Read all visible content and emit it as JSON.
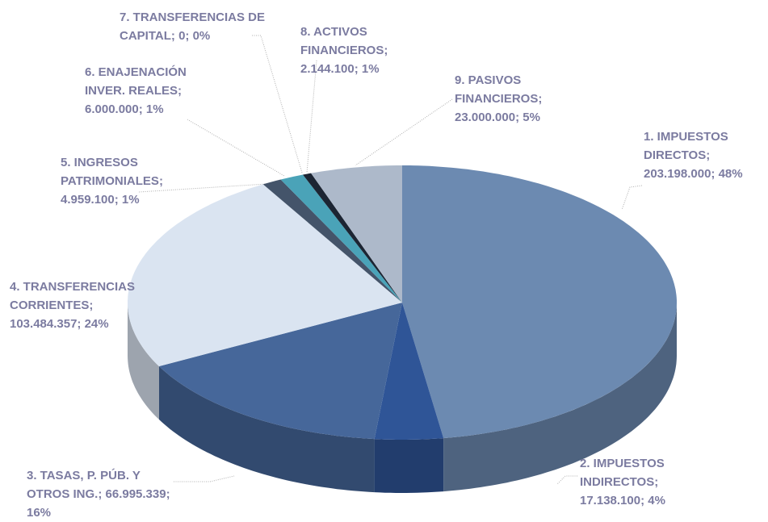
{
  "chart_data": {
    "type": "pie3d",
    "categories": [
      "1. IMPUESTOS DIRECTOS;",
      "2. IMPUESTOS INDIRECTOS;",
      "3. TASAS, P. PÚB. Y OTROS ING.;",
      "4. TRANSFERENCIAS CORRIENTES;",
      "5. INGRESOS PATRIMONIALES;",
      "6. ENAJENACIÓN INVER. REALES;",
      "7. TRANSFERENCIAS DE CAPITAL;",
      "8. ACTIVOS FINANCIEROS;",
      "9. PASIVOS FINANCIEROS;"
    ],
    "values": [
      203198000,
      17138100,
      66995339,
      103484357,
      4959100,
      6000000,
      0,
      2144100,
      23000000
    ],
    "value_labels": [
      "203.198.000;",
      "17.138.100;",
      "66.995.339;",
      "103.484.357;",
      "4.959.100;",
      "6.000.000;",
      "0;",
      "2.144.100;",
      "23.000.000;"
    ],
    "percent_labels": [
      "48%",
      "4%",
      "16%",
      "24%",
      "1%",
      "1%",
      "0%",
      "1%",
      "5%"
    ],
    "colors": [
      "#6c8ab1",
      "#2f5597",
      "#46679a",
      "#dae4f1",
      "#44546a",
      "#4aa3b8",
      "#2a6f86",
      "#1c2533",
      "#adb9ca"
    ]
  }
}
